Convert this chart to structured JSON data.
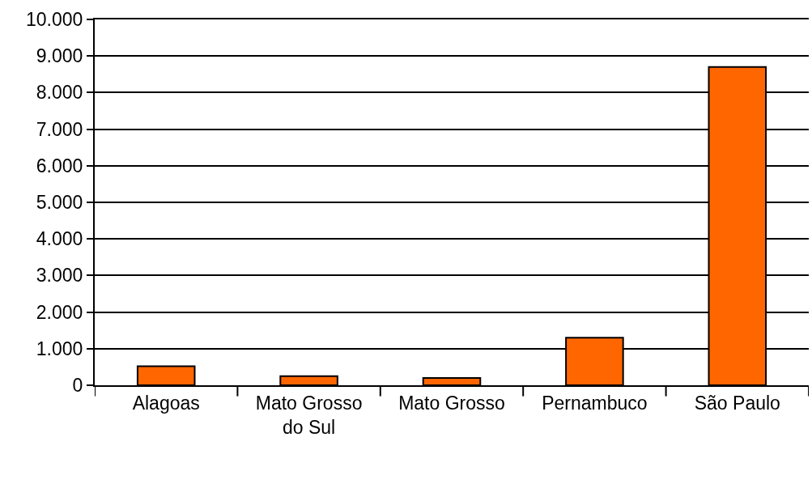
{
  "chart_data": {
    "type": "bar",
    "categories": [
      "Alagoas",
      "Mato Grosso do Sul",
      "Mato Grosso",
      "Pernambuco",
      "São Paulo"
    ],
    "values": [
      520,
      250,
      200,
      1300,
      8700
    ],
    "color": "#ff6600",
    "ylim": [
      0,
      10000
    ],
    "yticks": [
      {
        "value": 0,
        "label": "0"
      },
      {
        "value": 1000,
        "label": "1.000"
      },
      {
        "value": 2000,
        "label": "2.000"
      },
      {
        "value": 3000,
        "label": "3.000"
      },
      {
        "value": 4000,
        "label": "4.000"
      },
      {
        "value": 5000,
        "label": "5.000"
      },
      {
        "value": 6000,
        "label": "6.000"
      },
      {
        "value": 7000,
        "label": "7.000"
      },
      {
        "value": 8000,
        "label": "8.000"
      },
      {
        "value": 9000,
        "label": "9.000"
      },
      {
        "value": 10000,
        "label": "10.000"
      }
    ],
    "grid": "y"
  }
}
